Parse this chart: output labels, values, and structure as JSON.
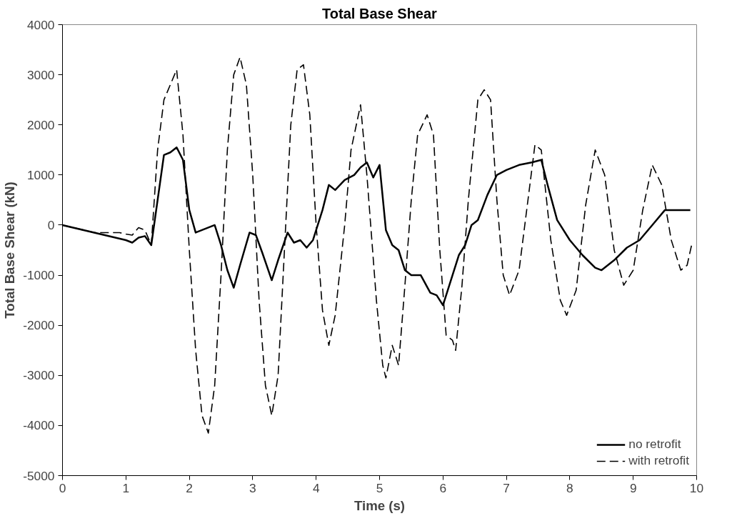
{
  "chart_data": {
    "type": "line",
    "title": "Total Base Shear",
    "xlabel": "Time (s)",
    "ylabel": "Total Base Shear (kN)",
    "xlim": [
      0,
      10
    ],
    "xticks": [
      0,
      1,
      2,
      3,
      4,
      5,
      6,
      7,
      8,
      9,
      10
    ],
    "ylim": [
      -5000,
      4000
    ],
    "yticks": [
      -5000,
      -4000,
      -3000,
      -2000,
      -1000,
      0,
      1000,
      2000,
      3000,
      4000
    ],
    "grid": false,
    "legend": "bottom right",
    "marker": "none",
    "series": [
      {
        "name": "no retrofit",
        "color": "#000000",
        "line_style": "solid",
        "x": [
          0,
          0.5,
          1.0,
          1.1,
          1.2,
          1.3,
          1.4,
          1.5,
          1.6,
          1.7,
          1.8,
          1.9,
          2.0,
          2.1,
          2.2,
          2.4,
          2.5,
          2.6,
          2.7,
          2.8,
          2.95,
          3.05,
          3.15,
          3.3,
          3.4,
          3.55,
          3.65,
          3.75,
          3.85,
          3.95,
          4.1,
          4.2,
          4.3,
          4.45,
          4.6,
          4.7,
          4.8,
          4.9,
          5.0,
          5.1,
          5.2,
          5.3,
          5.4,
          5.5,
          5.65,
          5.8,
          5.9,
          6.0,
          6.1,
          6.25,
          6.35,
          6.45,
          6.55,
          6.7,
          6.85,
          7.0,
          7.2,
          7.4,
          7.55,
          7.65,
          7.8,
          8.0,
          8.2,
          8.4,
          8.5,
          8.7,
          8.9,
          9.1,
          9.3,
          9.5,
          9.7,
          9.9
        ],
        "values": [
          0,
          -150,
          -300,
          -350,
          -250,
          -220,
          -400,
          500,
          1400,
          1450,
          1550,
          1300,
          300,
          -150,
          -100,
          0,
          -400,
          -900,
          -1250,
          -800,
          -150,
          -200,
          -550,
          -1100,
          -700,
          -150,
          -350,
          -300,
          -450,
          -300,
          300,
          800,
          700,
          900,
          1000,
          1150,
          1250,
          950,
          1200,
          -100,
          -400,
          -500,
          -900,
          -1000,
          -1000,
          -1350,
          -1400,
          -1600,
          -1200,
          -600,
          -400,
          0,
          100,
          600,
          1000,
          1100,
          1200,
          1250,
          1300,
          800,
          100,
          -300,
          -600,
          -850,
          -900,
          -700,
          -450,
          -300,
          0,
          300,
          300,
          300
        ]
      },
      {
        "name": "with retrofit",
        "color": "#000000",
        "line_style": "dashed",
        "x": [
          0,
          0.5,
          0.9,
          1.0,
          1.1,
          1.2,
          1.3,
          1.4,
          1.5,
          1.6,
          1.7,
          1.8,
          1.9,
          2.0,
          2.1,
          2.2,
          2.3,
          2.4,
          2.5,
          2.6,
          2.7,
          2.8,
          2.9,
          3.0,
          3.1,
          3.2,
          3.3,
          3.4,
          3.5,
          3.6,
          3.7,
          3.8,
          3.9,
          4.0,
          4.1,
          4.2,
          4.3,
          4.45,
          4.55,
          4.7,
          4.8,
          4.95,
          5.05,
          5.1,
          5.2,
          5.3,
          5.4,
          5.5,
          5.6,
          5.75,
          5.85,
          5.95,
          6.05,
          6.15,
          6.2,
          6.3,
          6.4,
          6.55,
          6.65,
          6.75,
          6.85,
          6.95,
          7.05,
          7.2,
          7.35,
          7.45,
          7.55,
          7.7,
          7.85,
          7.95,
          8.1,
          8.25,
          8.4,
          8.55,
          8.7,
          8.85,
          9.0,
          9.15,
          9.3,
          9.45,
          9.6,
          9.75,
          9.85,
          9.92
        ],
        "values": [
          0,
          -150,
          -150,
          -180,
          -200,
          -50,
          -100,
          -400,
          1500,
          2500,
          2800,
          3100,
          1800,
          -500,
          -2500,
          -3800,
          -4150,
          -3200,
          -1000,
          1500,
          3000,
          3350,
          2800,
          1000,
          -1500,
          -3200,
          -3800,
          -3000,
          -500,
          2000,
          3100,
          3200,
          2200,
          0,
          -1700,
          -2400,
          -1800,
          0,
          1500,
          2400,
          1000,
          -1500,
          -2800,
          -3050,
          -2400,
          -2800,
          -1200,
          500,
          1800,
          2200,
          1800,
          -500,
          -2200,
          -2300,
          -2500,
          -1200,
          500,
          2500,
          2700,
          2500,
          500,
          -1000,
          -1400,
          -900,
          600,
          1600,
          1500,
          -300,
          -1500,
          -1800,
          -1300,
          400,
          1500,
          1000,
          -500,
          -1200,
          -900,
          300,
          1200,
          800,
          -300,
          -900,
          -800,
          -400
        ]
      }
    ]
  }
}
